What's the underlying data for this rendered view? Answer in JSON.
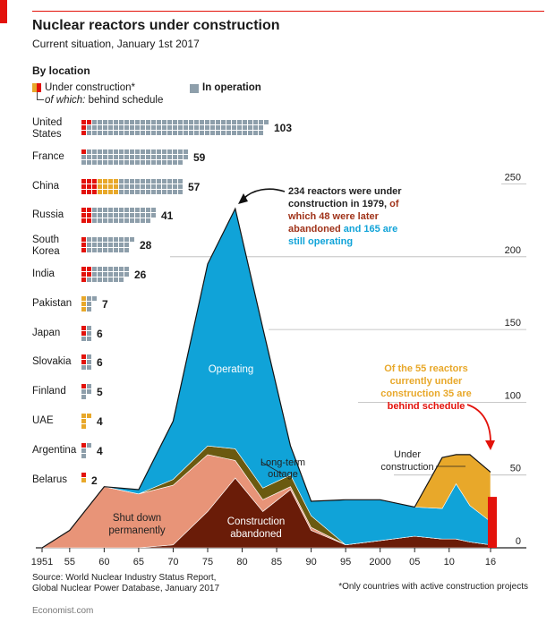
{
  "header": {
    "title": "Nuclear reactors under construction",
    "subtitle": "Current situation, January 1st 2017"
  },
  "by_location": {
    "heading": "By location",
    "legend": {
      "under_construction": "Under construction*",
      "behind_schedule_prefix": "of which:",
      "behind_schedule": "behind schedule",
      "in_operation": "In operation"
    },
    "countries": [
      {
        "name": "United States",
        "operating": 99,
        "construction": 4,
        "behind": 4,
        "total": "103"
      },
      {
        "name": "France",
        "operating": 58,
        "construction": 1,
        "behind": 1,
        "total": "59"
      },
      {
        "name": "China",
        "operating": 36,
        "construction": 21,
        "behind": 9,
        "total": "57"
      },
      {
        "name": "Russia",
        "operating": 35,
        "construction": 6,
        "behind": 6,
        "total": "41"
      },
      {
        "name": "South Korea",
        "operating": 25,
        "construction": 3,
        "behind": 3,
        "total": "28"
      },
      {
        "name": "India",
        "operating": 21,
        "construction": 5,
        "behind": 5,
        "total": "26"
      },
      {
        "name": "Pakistan",
        "operating": 4,
        "construction": 3,
        "behind": 0,
        "total": "7"
      },
      {
        "name": "Japan",
        "operating": 4,
        "construction": 2,
        "behind": 2,
        "total": "6"
      },
      {
        "name": "Slovakia",
        "operating": 4,
        "construction": 2,
        "behind": 2,
        "total": "6"
      },
      {
        "name": "Finland",
        "operating": 4,
        "construction": 1,
        "behind": 1,
        "total": "5"
      },
      {
        "name": "UAE",
        "operating": 0,
        "construction": 4,
        "behind": 0,
        "total": "4"
      },
      {
        "name": "Argentina",
        "operating": 3,
        "construction": 1,
        "behind": 1,
        "total": "4"
      },
      {
        "name": "Belarus",
        "operating": 0,
        "construction": 2,
        "behind": 1,
        "total": "2"
      }
    ]
  },
  "chart_data": {
    "type": "area",
    "x": [
      1951,
      1955,
      1960,
      1965,
      1970,
      1975,
      1979,
      1983,
      1987,
      1990,
      1995,
      2000,
      2005,
      2009,
      2011,
      2013,
      2016
    ],
    "series": [
      {
        "name": "Construction abandoned",
        "values": [
          0,
          0,
          0,
          0,
          2,
          25,
          48,
          25,
          40,
          12,
          2,
          5,
          8,
          6,
          6,
          4,
          2
        ]
      },
      {
        "name": "Shut down permanently",
        "values": [
          0,
          12,
          42,
          37,
          41,
          39,
          12,
          8,
          2,
          2,
          0,
          0,
          0,
          0,
          0,
          0,
          0
        ]
      },
      {
        "name": "Long-term outage",
        "values": [
          0,
          0,
          0,
          0,
          4,
          6,
          8,
          8,
          8,
          8,
          0,
          0,
          0,
          0,
          0,
          0,
          0
        ]
      },
      {
        "name": "Operating",
        "values": [
          0,
          0,
          0,
          3,
          40,
          125,
          165,
          110,
          20,
          10,
          31,
          28,
          20,
          21,
          38,
          25,
          16
        ]
      },
      {
        "name": "Under construction",
        "values": [
          0,
          0,
          0,
          0,
          0,
          0,
          0,
          0,
          0,
          0,
          0,
          0,
          0,
          35,
          20,
          35,
          34
        ]
      },
      {
        "name": "Behind schedule",
        "values": [
          0,
          0,
          0,
          0,
          0,
          0,
          0,
          0,
          0,
          0,
          0,
          0,
          0,
          0,
          0,
          0,
          35
        ]
      }
    ],
    "xticks": [
      "1951",
      "55",
      "60",
      "65",
      "70",
      "75",
      "80",
      "85",
      "90",
      "95",
      "2000",
      "05",
      "10",
      "16"
    ],
    "yticks": [
      "0",
      "50",
      "100",
      "150",
      "200",
      "250"
    ],
    "ylim": [
      0,
      250
    ],
    "xlim": [
      1951,
      2017
    ],
    "area_labels": {
      "operating": "Operating",
      "shut_down": [
        "Shut down",
        "permanently"
      ],
      "abandoned": [
        "Construction",
        "abandoned"
      ],
      "outage": [
        "Long-term",
        "outage"
      ],
      "under_construction": [
        "Under",
        "construction"
      ]
    },
    "annotations": {
      "peak": [
        "234 reactors were under",
        "construction in 1979,",
        "of",
        "which 48 were later",
        "abandoned",
        "and 165 are",
        "still operating"
      ],
      "current": [
        "Of the 55 reactors",
        "currently under",
        "construction 35 are",
        "behind schedule"
      ]
    },
    "colors": {
      "operating": "#10a3d8",
      "shut_down": "#e89478",
      "abandoned": "#6a1c08",
      "outage": "#6b5a10",
      "under_construction": "#e8a82a",
      "behind_schedule": "#e3120b",
      "in_operation_icon": "#8e9fab"
    }
  },
  "footer": {
    "source": [
      "Source: World Nuclear Industry Status Report,",
      "Global Nuclear Power Database, January 2017"
    ],
    "footnote": "*Only countries with active construction projects",
    "brand": "Economist.com"
  }
}
